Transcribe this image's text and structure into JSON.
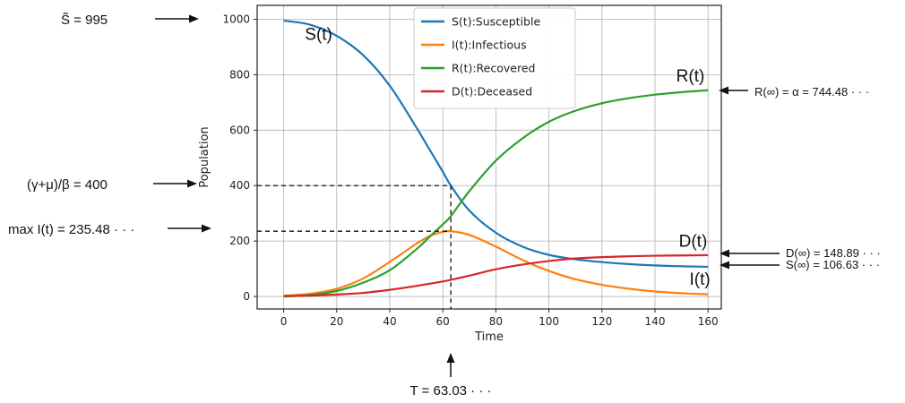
{
  "chart_data": {
    "type": "line",
    "xlabel": "Time",
    "ylabel": "Population",
    "xlim": [
      -10,
      165
    ],
    "ylim": [
      -45,
      1050
    ],
    "xticks": [
      0,
      20,
      40,
      60,
      80,
      100,
      120,
      140,
      160
    ],
    "yticks": [
      0,
      200,
      400,
      600,
      800,
      1000
    ],
    "grid": true,
    "legend_position": "top-center",
    "series": [
      {
        "name": "S(t):Susceptible",
        "color": "#1f77b4",
        "x": [
          0,
          10,
          20,
          30,
          40,
          50,
          55,
          60,
          63.03,
          70,
          80,
          90,
          100,
          110,
          120,
          130,
          140,
          150,
          160
        ],
        "y": [
          995,
          980,
          940,
          870,
          760,
          610,
          530,
          450,
          400,
          310,
          230,
          180,
          150,
          134,
          124,
          117,
          112,
          109,
          107
        ]
      },
      {
        "name": "I(t):Infectious",
        "color": "#ff7f0e",
        "x": [
          0,
          10,
          20,
          30,
          40,
          50,
          55,
          60,
          63.03,
          70,
          80,
          90,
          100,
          110,
          120,
          130,
          140,
          150,
          160
        ],
        "y": [
          3,
          10,
          28,
          65,
          125,
          190,
          218,
          233,
          235.48,
          222,
          180,
          132,
          92,
          62,
          42,
          28,
          18,
          12,
          8
        ]
      },
      {
        "name": "R(t):Recovered",
        "color": "#2ca02c",
        "x": [
          0,
          10,
          20,
          30,
          40,
          50,
          55,
          60,
          63.03,
          70,
          80,
          90,
          100,
          110,
          120,
          130,
          140,
          150,
          160
        ],
        "y": [
          0,
          5,
          20,
          50,
          95,
          170,
          215,
          260,
          290,
          380,
          490,
          570,
          630,
          670,
          697,
          715,
          728,
          737,
          744
        ]
      },
      {
        "name": "D(t):Deceased",
        "color": "#d62728",
        "x": [
          0,
          10,
          20,
          30,
          40,
          50,
          55,
          60,
          63.03,
          70,
          80,
          90,
          100,
          110,
          120,
          130,
          140,
          150,
          160
        ],
        "y": [
          2,
          3,
          7,
          13,
          24,
          38,
          46,
          54,
          60,
          75,
          98,
          115,
          128,
          137,
          142,
          145,
          147,
          148,
          149
        ]
      }
    ],
    "curve_labels": [
      {
        "text": "S(t)",
        "x": 8,
        "y": 925
      },
      {
        "text": "R(t)",
        "x": 148,
        "y": 775
      },
      {
        "text": "D(t)",
        "x": 149,
        "y": 180
      },
      {
        "text": "I(t)",
        "x": 153,
        "y": 42
      }
    ],
    "dashed_lines": [
      {
        "from": [
          -10,
          400
        ],
        "to": [
          63.03,
          400
        ]
      },
      {
        "from": [
          -10,
          235.48
        ],
        "to": [
          63.03,
          235.48
        ]
      },
      {
        "from": [
          63.03,
          400
        ],
        "to": [
          63.03,
          -45
        ]
      }
    ],
    "annotations": {
      "s_tilde": "S̃ = 995",
      "gamma_mu_beta": "(γ+μ)/β = 400",
      "max_i": "max I(t) = 235.48 · · ·",
      "r_inf": "R(∞) = α = 744.48 · · ·",
      "d_inf": "D(∞) = 148.89 · · ·",
      "s_inf": "S(∞) = 106.63 · · ·",
      "t_peak": "T = 63.03 · · ·"
    }
  }
}
